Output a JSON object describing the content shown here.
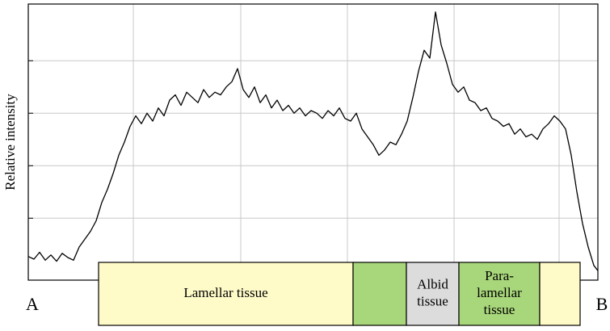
{
  "chart_data": {
    "type": "line",
    "y_label": "Relative intensity",
    "x_start_label": "A",
    "x_end_label": "B",
    "xlim": [
      0,
      705
    ],
    "ylim": [
      -0.18,
      5.08
    ],
    "xticks": [
      130,
      263,
      395,
      527,
      657
    ],
    "yticks": [
      1,
      2,
      3,
      4
    ],
    "grid": true,
    "series": [
      {
        "color": "#000000",
        "x": [
          0,
          7,
          14,
          21,
          28,
          35,
          42,
          49,
          56,
          63,
          70,
          77,
          84,
          91,
          98,
          105,
          112,
          119,
          126,
          133,
          140,
          147,
          154,
          161,
          168,
          175,
          182,
          189,
          196,
          203,
          210,
          217,
          224,
          231,
          238,
          245,
          252,
          259,
          266,
          273,
          280,
          287,
          294,
          301,
          308,
          315,
          322,
          329,
          336,
          343,
          350,
          357,
          364,
          371,
          378,
          385,
          392,
          399,
          406,
          413,
          420,
          427,
          434,
          441,
          448,
          455,
          462,
          469,
          476,
          483,
          490,
          497,
          504,
          511,
          518,
          525,
          532,
          539,
          546,
          553,
          560,
          567,
          574,
          581,
          588,
          595,
          602,
          609,
          616,
          623,
          630,
          637,
          644,
          651,
          658,
          665,
          672,
          679,
          686,
          693,
          700,
          705
        ],
        "values": [
          0.27,
          0.22,
          0.35,
          0.2,
          0.3,
          0.18,
          0.33,
          0.25,
          0.2,
          0.45,
          0.6,
          0.75,
          0.95,
          1.3,
          1.55,
          1.85,
          2.2,
          2.45,
          2.75,
          2.95,
          2.8,
          3.0,
          2.85,
          3.1,
          2.95,
          3.25,
          3.35,
          3.15,
          3.4,
          3.3,
          3.2,
          3.45,
          3.3,
          3.4,
          3.35,
          3.5,
          3.6,
          3.85,
          3.45,
          3.3,
          3.5,
          3.2,
          3.35,
          3.1,
          3.25,
          3.05,
          3.15,
          3.0,
          3.1,
          2.95,
          3.05,
          3.0,
          2.9,
          3.05,
          2.95,
          3.1,
          2.9,
          2.85,
          3.0,
          2.7,
          2.55,
          2.4,
          2.2,
          2.3,
          2.45,
          2.4,
          2.6,
          2.85,
          3.3,
          3.8,
          4.2,
          4.05,
          4.93,
          4.3,
          3.95,
          3.55,
          3.4,
          3.5,
          3.25,
          3.2,
          3.05,
          3.1,
          2.9,
          2.85,
          2.75,
          2.8,
          2.6,
          2.7,
          2.55,
          2.6,
          2.5,
          2.7,
          2.8,
          2.95,
          2.85,
          2.7,
          2.2,
          1.5,
          0.9,
          0.45,
          0.1,
          0.0
        ]
      }
    ],
    "regions": [
      {
        "start": 87,
        "end": 402,
        "color": "#fffbc8",
        "label": [
          "Lamellar tissue"
        ]
      },
      {
        "start": 402,
        "end": 468,
        "color": "#a8d67a",
        "label": null
      },
      {
        "start": 468,
        "end": 533,
        "color": "#dcdcdc",
        "label": [
          "Albid",
          "tissue"
        ]
      },
      {
        "start": 533,
        "end": 633,
        "color": "#a8d67a",
        "label": [
          "Para-",
          "lamellar",
          "tissue"
        ]
      },
      {
        "start": 633,
        "end": 683,
        "color": "#fffbc8",
        "label": null
      }
    ]
  }
}
